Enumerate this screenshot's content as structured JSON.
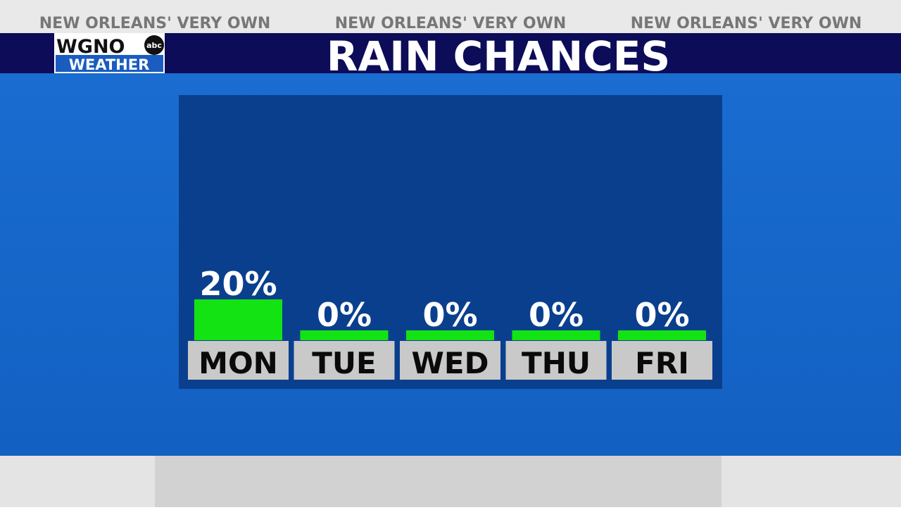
{
  "header": {
    "tagline": [
      "NEW ORLEANS' VERY OWN",
      "NEW ORLEANS' VERY OWN",
      "NEW ORLEANS' VERY OWN"
    ],
    "logo": {
      "station": "WGNO",
      "network": "abc",
      "section": "WEATHER"
    }
  },
  "chart_data": {
    "type": "bar",
    "title": "RAIN CHANCES",
    "categories": [
      "MON",
      "TUE",
      "WED",
      "THU",
      "FRI"
    ],
    "values": [
      20,
      0,
      0,
      0,
      0
    ],
    "value_labels": [
      "20%",
      "0%",
      "0%",
      "0%",
      "0%"
    ],
    "color": "#13e313"
  }
}
